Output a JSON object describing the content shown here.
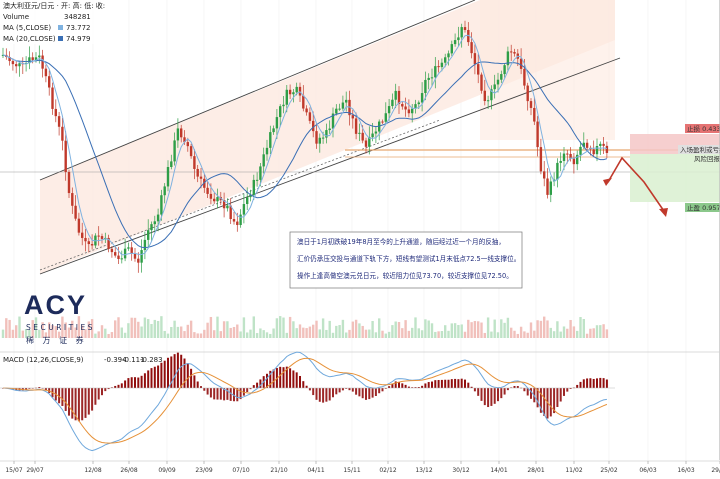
{
  "legend": {
    "title": "澳大利亚元/日元 · 开: 高: 低: 收:",
    "volume_label": "Volume",
    "volume_value": "348281",
    "ma5_label": "MA (5,CLOSE)",
    "ma5_value": "73.772",
    "ma20_label": "MA (20,CLOSE)",
    "ma20_value": "74.979",
    "macd_label": "MACD (12,26,CLOSE,9)",
    "macd_v1": "-0.394",
    "macd_v2": "-0.111",
    "macd_v3": "-0.283"
  },
  "annotation": {
    "line1": "澳日于1月初跌破19年8月至今的上升通道，随后经过近一个月的反抽，",
    "line2": "汇价仍承压交投与通道下轨下方，短线有望测试1月末低点72.5一线支撑位。",
    "line3": "操作上逢高做空澳元兑日元，较近阻力位见73.70，较近支撑位见72.50。"
  },
  "trade_labels": {
    "take_profit": "止损 0.43350",
    "entry": "入场盈利或亏损",
    "risk": "风险回报比",
    "stop": "止盈 0.95715"
  },
  "logo": {
    "brand": "ACY",
    "sub": "SECURITIES",
    "cn": "稀 万 证 券"
  },
  "colors": {
    "up": "#2e9e47",
    "down": "#c0392b",
    "ma5": "#7fb2e0",
    "ma20": "#3a6fb5",
    "channel_fill": "#fde9e0",
    "channel_line": "#444444",
    "macd_line": "#6fa8dc",
    "signal_line": "#e69138",
    "hist_pos": "#c0392b",
    "hist_neg": "#8b0000"
  },
  "chart_data": {
    "type": "candlestick",
    "x_ticks": [
      "15/07",
      "29/07",
      "12/08",
      "26/08",
      "09/09",
      "23/09",
      "07/10",
      "21/10",
      "04/11",
      "15/11",
      "02/12",
      "13/12",
      "30/12",
      "14/01",
      "28/01",
      "11/02",
      "25/02",
      "06/03",
      "16/03",
      "29/03"
    ],
    "price_levels": {
      "resistance": 73.7,
      "support": 72.5
    },
    "ma5_last": 73.772,
    "ma20_last": 74.979,
    "macd_last": {
      "macd": -0.394,
      "signal": -0.111,
      "histogram": -0.283
    }
  }
}
